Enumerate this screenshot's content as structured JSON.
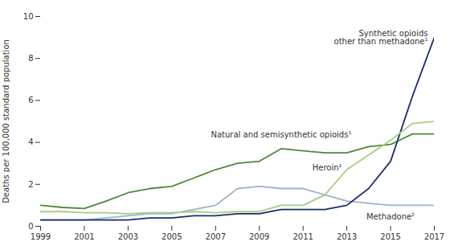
{
  "chart_data": {
    "type": "line",
    "ylabel": "Deaths per 100,000 standard population",
    "x": [
      1999,
      2000,
      2001,
      2002,
      2003,
      2004,
      2005,
      2006,
      2007,
      2008,
      2009,
      2010,
      2011,
      2012,
      2013,
      2014,
      2015,
      2016,
      2017
    ],
    "series": [
      {
        "name": "Natural and semisynthetic opioids¹",
        "color": "#4d8a3a",
        "values": [
          1.0,
          0.9,
          0.85,
          1.2,
          1.6,
          1.8,
          1.9,
          2.3,
          2.7,
          3.0,
          3.1,
          3.7,
          3.6,
          3.5,
          3.5,
          3.8,
          3.9,
          4.4,
          4.4
        ]
      },
      {
        "name": "Methadone²",
        "color": "#9ab5cc",
        "values": [
          0.3,
          0.3,
          0.3,
          0.4,
          0.5,
          0.6,
          0.6,
          0.8,
          1.0,
          1.8,
          1.9,
          1.8,
          1.8,
          1.5,
          1.2,
          1.1,
          1.0,
          1.0,
          1.0
        ]
      },
      {
        "name": "Synthetic opioids\nother than methadone¹",
        "color": "#1a2f6b",
        "values": [
          0.3,
          0.3,
          0.3,
          0.3,
          0.3,
          0.4,
          0.4,
          0.5,
          0.5,
          0.6,
          0.6,
          0.8,
          0.8,
          0.8,
          1.0,
          1.8,
          3.1,
          6.2,
          9.0
        ]
      },
      {
        "name": "Heroin¹",
        "color": "#a8cc85",
        "values": [
          0.7,
          0.7,
          0.65,
          0.65,
          0.6,
          0.65,
          0.65,
          0.7,
          0.65,
          0.7,
          0.7,
          1.0,
          1.0,
          1.5,
          2.7,
          3.4,
          4.1,
          4.9,
          5.0
        ]
      }
    ],
    "xlim": [
      1999,
      2017
    ],
    "xticks": [
      1999,
      2001,
      2003,
      2005,
      2007,
      2009,
      2011,
      2013,
      2015,
      2017
    ],
    "ylim": [
      0,
      10
    ],
    "yticks": [
      0,
      2,
      4,
      6,
      8,
      10
    ],
    "grid": false
  }
}
